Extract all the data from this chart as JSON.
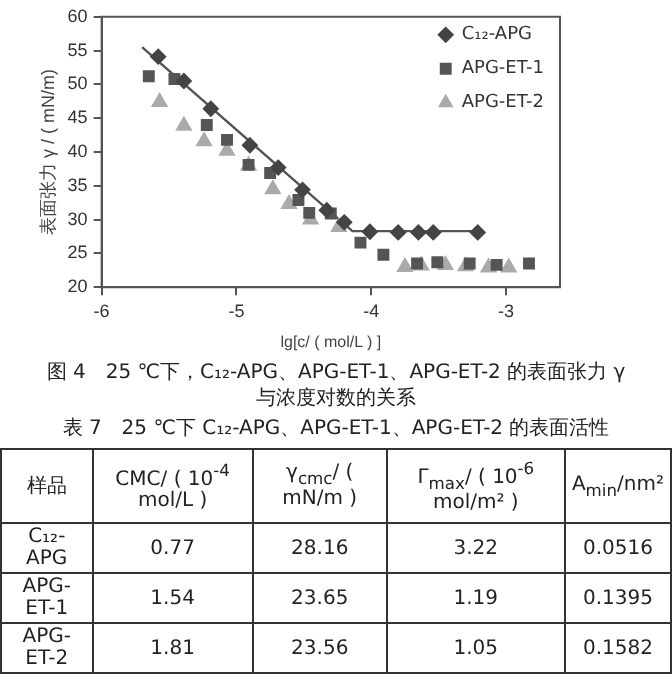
{
  "chart_data": [
    {
      "type": "scatter",
      "title": "图 4　25 ℃下，C₁₂-APG、APG-ET-1、APG-ET-2 的表面张力 γ 与浓度对数的关系",
      "xlabel": "lg[c/ ( mol/L ) ]",
      "ylabel": "表面张力 γ / ( mN/m)",
      "xlim": [
        -6,
        -2.6
      ],
      "xticks": [
        -6,
        -5,
        -4,
        -3
      ],
      "ylim": [
        20,
        60
      ],
      "yticks": [
        20,
        25,
        30,
        35,
        40,
        45,
        50,
        55,
        60
      ],
      "grid": false,
      "legend": "top right",
      "series": [
        {
          "name": "C₁₂-APG",
          "color": "#444444",
          "marker": "diamond",
          "x": [
            -5.58,
            -5.39,
            -5.19,
            -4.9,
            -4.69,
            -4.51,
            -4.33,
            -4.2,
            -4.01,
            -3.8,
            -3.65,
            -3.54,
            -3.21
          ],
          "values": [
            54.1,
            50.5,
            46.4,
            41.0,
            37.7,
            34.4,
            31.4,
            29.6,
            28.2,
            28.1,
            28.1,
            28.1,
            28.1
          ]
        },
        {
          "name": "APG-ET-1",
          "color": "#555555",
          "marker": "square",
          "x": [
            -5.65,
            -5.46,
            -5.22,
            -5.07,
            -4.91,
            -4.75,
            -4.54,
            -4.46,
            -4.3,
            -4.08,
            -3.91,
            -3.66,
            -3.51,
            -3.27,
            -3.07,
            -2.83
          ],
          "values": [
            51.2,
            50.8,
            44.0,
            41.8,
            38.1,
            36.9,
            32.9,
            31.0,
            30.9,
            26.6,
            24.8,
            23.5,
            23.7,
            23.5,
            23.3,
            23.5
          ]
        },
        {
          "name": "APG-ET-2",
          "color": "#aaaaaa",
          "marker": "triangle",
          "x": [
            -5.57,
            -5.39,
            -5.24,
            -5.07,
            -4.91,
            -4.73,
            -4.61,
            -4.45,
            -4.24,
            -3.75,
            -3.63,
            -3.45,
            -3.3,
            -3.13,
            -2.98
          ],
          "values": [
            47.4,
            43.9,
            41.6,
            40.2,
            38.0,
            34.5,
            32.3,
            30.0,
            28.9,
            23.0,
            23.2,
            23.3,
            23.1,
            22.9,
            22.9
          ]
        },
        {
          "type": "line",
          "color": "#555555",
          "marker": "none",
          "line_style": "solid",
          "x": [
            -5.7,
            -4.14,
            -3.21
          ],
          "values": [
            55.5,
            28.3,
            28.3
          ]
        }
      ]
    },
    {
      "type": "other",
      "title": "表 7　25 ℃下 C₁₂-APG、APG-ET-1、APG-ET-2 的表面活性",
      "categories": [
        "样品",
        "CMC/ ( 10$^{-4}$ mol/L )",
        "γ$_{cmc}$/ ( mN/m )",
        "Γ$_{max}$/ ( 10$^{-6}$ mol/m² )",
        "A$_{min}$/nm²"
      ],
      "y_categories": [
        "C₁₂-APG",
        "APG-ET-1",
        "APG-ET-2"
      ],
      "cell_labels": [
        [
          "0.77",
          "28.16",
          "3.22",
          "0.0516"
        ],
        [
          "1.54",
          "23.65",
          "1.19",
          "0.1395"
        ],
        [
          "1.81",
          "23.56",
          "1.05",
          "0.1582"
        ]
      ]
    }
  ]
}
